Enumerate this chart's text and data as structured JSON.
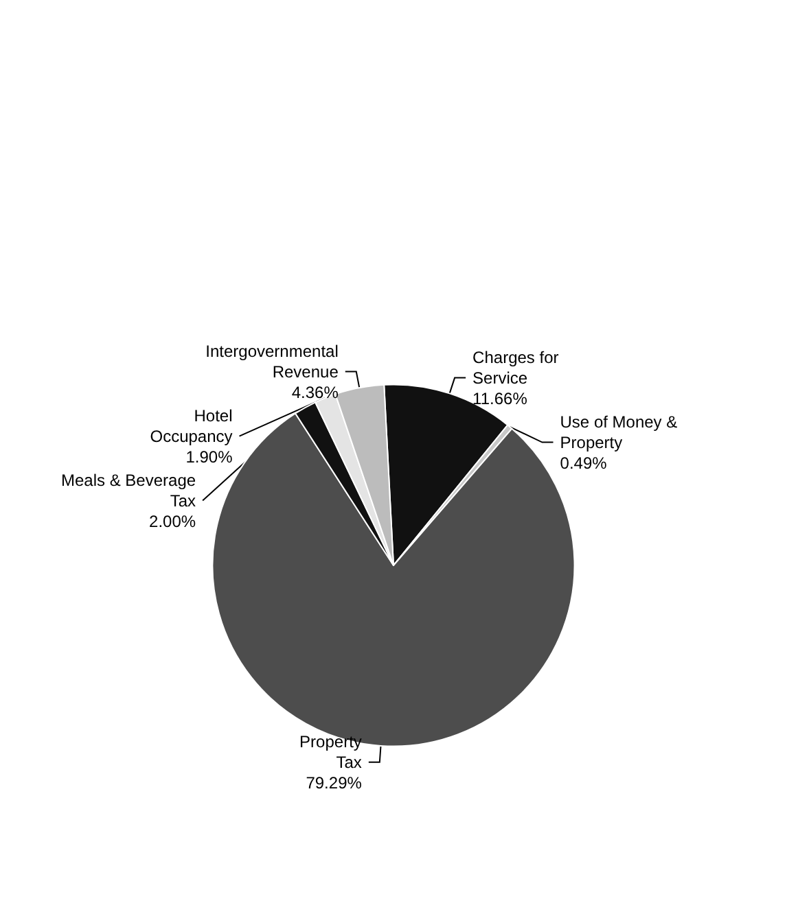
{
  "chart_data": {
    "type": "pie",
    "categories": [
      "Charges for Service",
      "Use of Money & Property",
      "Property Tax",
      "Meals & Beverage Tax",
      "Hotel Occupancy",
      "Intergovernmental Revenue"
    ],
    "values": [
      11.66,
      0.49,
      79.29,
      2.0,
      1.9,
      4.36
    ],
    "value_labels": [
      "11.66%",
      "0.49%",
      "79.29%",
      "2.00%",
      "1.90%",
      "4.36%"
    ],
    "colors": [
      "#111111",
      "#c8c8c8",
      "#4d4d4d",
      "#111111",
      "#e4e4e4",
      "#bcbcbc"
    ],
    "legend": false
  }
}
